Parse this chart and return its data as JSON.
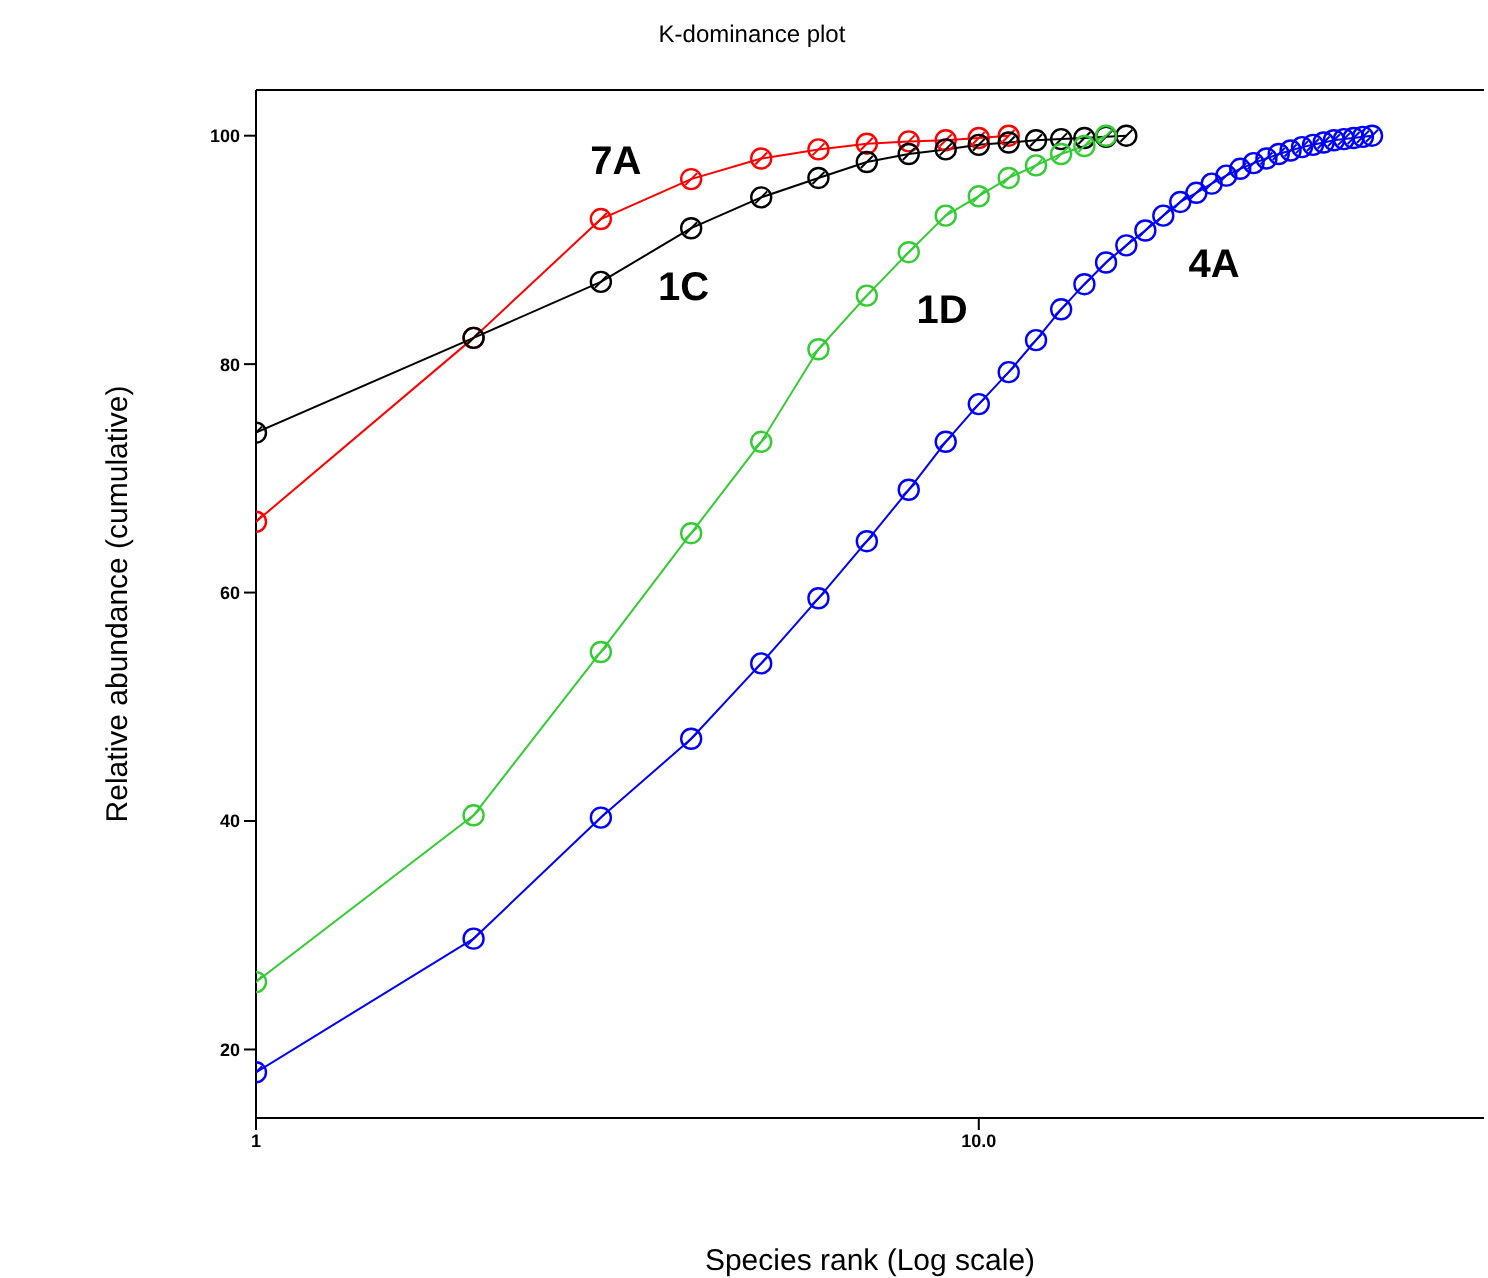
{
  "chart_data": {
    "type": "line",
    "title": "K-dominance plot",
    "xlabel": "Species rank (Log scale)",
    "ylabel": "Relative abundance (cumulative)",
    "log": "x",
    "xlim": [
      1,
      50
    ],
    "xticks": [
      1,
      {
        "value": 10,
        "label": "10.0"
      }
    ],
    "ylim": [
      14,
      104
    ],
    "yticks": [
      20,
      40,
      60,
      80,
      100
    ],
    "grid": false,
    "legend": false,
    "marker": "circle",
    "line_style": "solid",
    "series": [
      {
        "name": "7A",
        "color": "#ff0000",
        "x": [
          1,
          2,
          3,
          4,
          5,
          6,
          7,
          8,
          9,
          10,
          11
        ],
        "values": [
          66.2,
          82.3,
          92.7,
          96.2,
          98.0,
          98.8,
          99.3,
          99.5,
          99.6,
          99.8,
          100
        ]
      },
      {
        "name": "1C",
        "color": "#000000",
        "x": [
          1,
          2,
          3,
          4,
          5,
          6,
          7,
          8,
          9,
          10,
          11,
          12,
          13,
          14,
          15,
          16
        ],
        "values": [
          74.0,
          82.3,
          87.2,
          91.9,
          94.6,
          96.3,
          97.7,
          98.4,
          98.8,
          99.2,
          99.4,
          99.6,
          99.7,
          99.8,
          99.9,
          100
        ]
      },
      {
        "name": "1D",
        "color": "#33cc33",
        "x": [
          1,
          2,
          3,
          4,
          5,
          6,
          7,
          8,
          9,
          10,
          11,
          12,
          13,
          14,
          15
        ],
        "values": [
          25.9,
          40.5,
          54.8,
          65.2,
          73.2,
          81.3,
          86.0,
          89.8,
          93.0,
          94.7,
          96.3,
          97.4,
          98.4,
          99.1,
          100
        ]
      },
      {
        "name": "4A",
        "color": "#0000ff",
        "x": [
          1,
          2,
          3,
          4,
          5,
          6,
          7,
          8,
          9,
          10,
          11,
          12,
          13,
          14,
          15,
          16,
          17,
          18,
          19,
          20,
          21,
          22,
          23,
          24,
          25,
          26,
          27,
          28,
          29,
          30,
          31,
          32,
          33,
          34,
          35
        ],
        "values": [
          18.0,
          29.7,
          40.3,
          47.2,
          53.8,
          59.5,
          64.5,
          69.0,
          73.2,
          76.5,
          79.3,
          82.1,
          84.8,
          87.0,
          88.9,
          90.4,
          91.7,
          93.0,
          94.2,
          95.0,
          95.8,
          96.5,
          97.1,
          97.6,
          98.0,
          98.4,
          98.7,
          99.0,
          99.2,
          99.4,
          99.6,
          99.7,
          99.8,
          99.9,
          100
        ]
      }
    ]
  }
}
